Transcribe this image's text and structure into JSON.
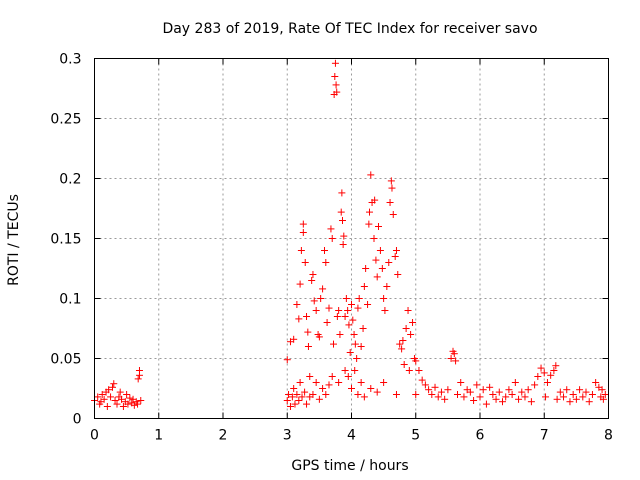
{
  "chart_data": {
    "type": "scatter",
    "title": "Day 283 of 2019, Rate Of TEC Index for receiver savo",
    "xlabel": "GPS time / hours",
    "ylabel": "ROTI / TECUs",
    "xlim": [
      0,
      8
    ],
    "ylim": [
      0,
      0.3
    ],
    "x_ticks": [
      0,
      1,
      2,
      3,
      4,
      5,
      6,
      7,
      8
    ],
    "x_tick_labels": [
      "0",
      "1",
      "2",
      "3",
      "4",
      "5",
      "6",
      "7",
      "8"
    ],
    "y_ticks": [
      0,
      0.05,
      0.1,
      0.15,
      0.2,
      0.25,
      0.3
    ],
    "y_tick_labels": [
      "0",
      "0.05",
      "0.1",
      "0.15",
      "0.2",
      "0.25",
      "0.3"
    ],
    "grid": true,
    "marker": "+",
    "color": "#ff0000",
    "series": [
      {
        "name": "ROTI",
        "points": [
          [
            0.0,
            0.015
          ],
          [
            0.05,
            0.018
          ],
          [
            0.08,
            0.012
          ],
          [
            0.1,
            0.014
          ],
          [
            0.12,
            0.02
          ],
          [
            0.15,
            0.016
          ],
          [
            0.18,
            0.022
          ],
          [
            0.2,
            0.01
          ],
          [
            0.22,
            0.024
          ],
          [
            0.25,
            0.018
          ],
          [
            0.28,
            0.026
          ],
          [
            0.3,
            0.029
          ],
          [
            0.32,
            0.015
          ],
          [
            0.35,
            0.012
          ],
          [
            0.38,
            0.018
          ],
          [
            0.4,
            0.022
          ],
          [
            0.42,
            0.016
          ],
          [
            0.45,
            0.01
          ],
          [
            0.48,
            0.014
          ],
          [
            0.5,
            0.02
          ],
          [
            0.52,
            0.012
          ],
          [
            0.55,
            0.017
          ],
          [
            0.58,
            0.013
          ],
          [
            0.6,
            0.016
          ],
          [
            0.62,
            0.011
          ],
          [
            0.65,
            0.014
          ],
          [
            0.67,
            0.012
          ],
          [
            0.68,
            0.033
          ],
          [
            0.7,
            0.036
          ],
          [
            0.7,
            0.04
          ],
          [
            0.72,
            0.015
          ],
          [
            3.0,
            0.049
          ],
          [
            3.0,
            0.015
          ],
          [
            3.02,
            0.02
          ],
          [
            3.05,
            0.064
          ],
          [
            3.05,
            0.01
          ],
          [
            3.08,
            0.018
          ],
          [
            3.1,
            0.066
          ],
          [
            3.1,
            0.025
          ],
          [
            3.12,
            0.012
          ],
          [
            3.15,
            0.095
          ],
          [
            3.15,
            0.02
          ],
          [
            3.18,
            0.083
          ],
          [
            3.18,
            0.015
          ],
          [
            3.2,
            0.112
          ],
          [
            3.2,
            0.03
          ],
          [
            3.22,
            0.14
          ],
          [
            3.23,
            0.018
          ],
          [
            3.25,
            0.162
          ],
          [
            3.25,
            0.155
          ],
          [
            3.27,
            0.022
          ],
          [
            3.28,
            0.13
          ],
          [
            3.3,
            0.085
          ],
          [
            3.3,
            0.012
          ],
          [
            3.32,
            0.072
          ],
          [
            3.33,
            0.06
          ],
          [
            3.35,
            0.035
          ],
          [
            3.35,
            0.018
          ],
          [
            3.38,
            0.115
          ],
          [
            3.4,
            0.12
          ],
          [
            3.4,
            0.02
          ],
          [
            3.42,
            0.098
          ],
          [
            3.45,
            0.09
          ],
          [
            3.45,
            0.03
          ],
          [
            3.48,
            0.07
          ],
          [
            3.5,
            0.068
          ],
          [
            3.5,
            0.016
          ],
          [
            3.52,
            0.1
          ],
          [
            3.55,
            0.108
          ],
          [
            3.55,
            0.025
          ],
          [
            3.58,
            0.14
          ],
          [
            3.6,
            0.13
          ],
          [
            3.6,
            0.02
          ],
          [
            3.62,
            0.08
          ],
          [
            3.65,
            0.092
          ],
          [
            3.65,
            0.028
          ],
          [
            3.68,
            0.158
          ],
          [
            3.7,
            0.15
          ],
          [
            3.7,
            0.035
          ],
          [
            3.72,
            0.062
          ],
          [
            3.73,
            0.27
          ],
          [
            3.74,
            0.285
          ],
          [
            3.75,
            0.296
          ],
          [
            3.76,
            0.278
          ],
          [
            3.77,
            0.272
          ],
          [
            3.78,
            0.085
          ],
          [
            3.8,
            0.09
          ],
          [
            3.8,
            0.03
          ],
          [
            3.82,
            0.07
          ],
          [
            3.84,
            0.172
          ],
          [
            3.85,
            0.188
          ],
          [
            3.86,
            0.165
          ],
          [
            3.87,
            0.145
          ],
          [
            3.88,
            0.152
          ],
          [
            3.9,
            0.085
          ],
          [
            3.9,
            0.04
          ],
          [
            3.92,
            0.1
          ],
          [
            3.94,
            0.09
          ],
          [
            3.95,
            0.035
          ],
          [
            3.96,
            0.078
          ],
          [
            3.98,
            0.055
          ],
          [
            4.0,
            0.095
          ],
          [
            4.0,
            0.025
          ],
          [
            4.02,
            0.082
          ],
          [
            4.04,
            0.07
          ],
          [
            4.05,
            0.04
          ],
          [
            4.06,
            0.062
          ],
          [
            4.08,
            0.05
          ],
          [
            4.1,
            0.092
          ],
          [
            4.1,
            0.02
          ],
          [
            4.12,
            0.1
          ],
          [
            4.15,
            0.06
          ],
          [
            4.15,
            0.03
          ],
          [
            4.18,
            0.075
          ],
          [
            4.2,
            0.11
          ],
          [
            4.2,
            0.018
          ],
          [
            4.22,
            0.125
          ],
          [
            4.25,
            0.095
          ],
          [
            4.27,
            0.162
          ],
          [
            4.28,
            0.172
          ],
          [
            4.3,
            0.203
          ],
          [
            4.3,
            0.025
          ],
          [
            4.32,
            0.18
          ],
          [
            4.35,
            0.15
          ],
          [
            4.36,
            0.182
          ],
          [
            4.38,
            0.132
          ],
          [
            4.4,
            0.118
          ],
          [
            4.4,
            0.022
          ],
          [
            4.42,
            0.16
          ],
          [
            4.45,
            0.14
          ],
          [
            4.48,
            0.125
          ],
          [
            4.5,
            0.1
          ],
          [
            4.5,
            0.03
          ],
          [
            4.52,
            0.09
          ],
          [
            4.55,
            0.11
          ],
          [
            4.58,
            0.13
          ],
          [
            4.6,
            0.18
          ],
          [
            4.62,
            0.198
          ],
          [
            4.63,
            0.192
          ],
          [
            4.65,
            0.17
          ],
          [
            4.68,
            0.135
          ],
          [
            4.7,
            0.14
          ],
          [
            4.7,
            0.02
          ],
          [
            4.72,
            0.12
          ],
          [
            4.75,
            0.062
          ],
          [
            4.78,
            0.058
          ],
          [
            4.8,
            0.065
          ],
          [
            4.82,
            0.045
          ],
          [
            4.85,
            0.075
          ],
          [
            4.88,
            0.09
          ],
          [
            4.9,
            0.04
          ],
          [
            4.92,
            0.07
          ],
          [
            4.95,
            0.08
          ],
          [
            4.98,
            0.05
          ],
          [
            5.0,
            0.048
          ],
          [
            5.0,
            0.02
          ],
          [
            5.05,
            0.04
          ],
          [
            5.1,
            0.032
          ],
          [
            5.15,
            0.028
          ],
          [
            5.2,
            0.024
          ],
          [
            5.25,
            0.02
          ],
          [
            5.3,
            0.026
          ],
          [
            5.35,
            0.018
          ],
          [
            5.4,
            0.022
          ],
          [
            5.45,
            0.016
          ],
          [
            5.5,
            0.024
          ],
          [
            5.55,
            0.05
          ],
          [
            5.58,
            0.056
          ],
          [
            5.6,
            0.054
          ],
          [
            5.62,
            0.048
          ],
          [
            5.65,
            0.02
          ],
          [
            5.7,
            0.03
          ],
          [
            5.75,
            0.018
          ],
          [
            5.8,
            0.024
          ],
          [
            5.85,
            0.022
          ],
          [
            5.9,
            0.015
          ],
          [
            5.95,
            0.028
          ],
          [
            6.0,
            0.018
          ],
          [
            6.05,
            0.024
          ],
          [
            6.1,
            0.012
          ],
          [
            6.15,
            0.026
          ],
          [
            6.2,
            0.02
          ],
          [
            6.25,
            0.016
          ],
          [
            6.3,
            0.022
          ],
          [
            6.35,
            0.014
          ],
          [
            6.4,
            0.018
          ],
          [
            6.45,
            0.024
          ],
          [
            6.5,
            0.02
          ],
          [
            6.55,
            0.03
          ],
          [
            6.6,
            0.016
          ],
          [
            6.65,
            0.022
          ],
          [
            6.7,
            0.018
          ],
          [
            6.75,
            0.024
          ],
          [
            6.8,
            0.014
          ],
          [
            6.85,
            0.028
          ],
          [
            6.9,
            0.035
          ],
          [
            6.95,
            0.042
          ],
          [
            7.0,
            0.038
          ],
          [
            7.02,
            0.018
          ],
          [
            7.05,
            0.03
          ],
          [
            7.1,
            0.036
          ],
          [
            7.15,
            0.04
          ],
          [
            7.18,
            0.044
          ],
          [
            7.2,
            0.016
          ],
          [
            7.25,
            0.022
          ],
          [
            7.3,
            0.018
          ],
          [
            7.35,
            0.024
          ],
          [
            7.4,
            0.014
          ],
          [
            7.45,
            0.02
          ],
          [
            7.5,
            0.016
          ],
          [
            7.55,
            0.024
          ],
          [
            7.6,
            0.018
          ],
          [
            7.65,
            0.022
          ],
          [
            7.7,
            0.014
          ],
          [
            7.75,
            0.02
          ],
          [
            7.8,
            0.03
          ],
          [
            7.85,
            0.026
          ],
          [
            7.88,
            0.018
          ],
          [
            7.9,
            0.024
          ],
          [
            7.92,
            0.016
          ],
          [
            7.95,
            0.02
          ]
        ]
      }
    ]
  }
}
